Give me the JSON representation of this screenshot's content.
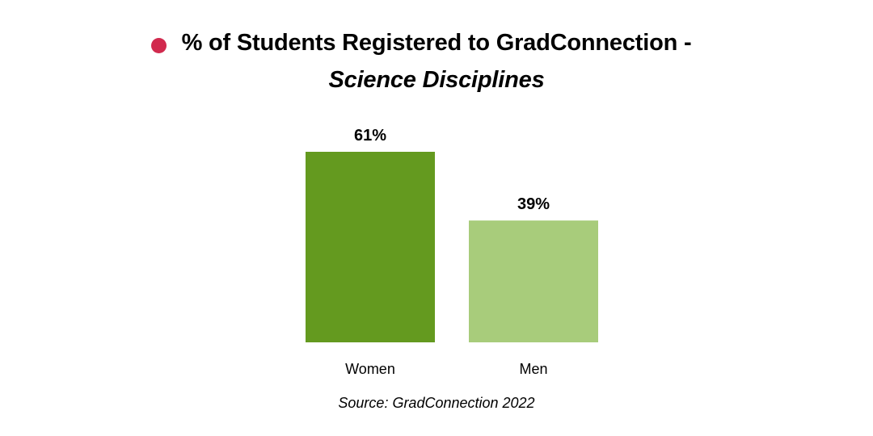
{
  "chart_data": {
    "type": "bar",
    "title": "% of Students Registered to GradConnection -",
    "subtitle": "Science Disciplines",
    "categories": [
      "Women",
      "Men"
    ],
    "values": [
      61,
      39
    ],
    "value_labels": [
      "61%",
      "39%"
    ],
    "colors": [
      "#649a1f",
      "#a8cc7b"
    ],
    "ylim": [
      0,
      61
    ],
    "grid": false,
    "legend": "none",
    "source": "Source: GradConnection 2022"
  },
  "theme": {
    "title_dot_color": "#d12a4e"
  }
}
